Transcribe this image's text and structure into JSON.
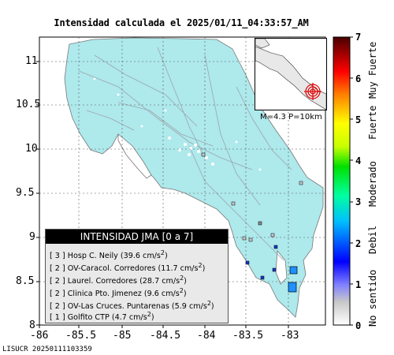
{
  "title": "Intensidad calculada el 2025/01/11_04:33:57_AM",
  "y_axis_ticks": [
    "11",
    "10.5",
    "10",
    "9.5",
    "9",
    "8.5",
    "8"
  ],
  "x_axis_ticks": [
    "-86",
    "-85.5",
    "-85",
    "-84.5",
    "-84",
    "-83.5",
    "-83"
  ],
  "legend": {
    "header": "INTENSIDAD JMA [0 a 7]",
    "rows": [
      {
        "prefix": "[ 3 ]  Hosp C. Neily (39.6 cm/s",
        "suffix": ")"
      },
      {
        "prefix": "[ 2 ]  OV-Caracol. Corredores (11.7 cm/s",
        "suffix": ")"
      },
      {
        "prefix": "[ 2 ]  Laurel. Corredores (28.7 cm/s",
        "suffix": ")"
      },
      {
        "prefix": "[ 2 ]  Clinica Pto. Jimenez (9.6 cm/s",
        "suffix": ")"
      },
      {
        "prefix": "[ 2 ]  OV-Las Cruces. Puntarenas (5.9 cm/s",
        "suffix": ")"
      },
      {
        "prefix": "[ 1 ]  Golfito CTP (4.7 cm/s",
        "suffix": ")"
      }
    ],
    "superscript": "2"
  },
  "inset_info": "M=4.3 P=10km",
  "colorbar": {
    "ticks": [
      "7",
      "6",
      "5",
      "4",
      "3",
      "2",
      "1",
      "0"
    ],
    "words": [
      "Muy Fuerte",
      "Fuerte",
      "Moderado",
      "Debil",
      "No sentido"
    ]
  },
  "footer": "LISUCR 20250111103359",
  "colors": {
    "land": "#aee9ec",
    "station_intensity_3": "#1e90ff",
    "station_intensity_2": "#1838c8",
    "station_intensity_1": "#8a8a8a",
    "epicenter": "#e00000"
  }
}
